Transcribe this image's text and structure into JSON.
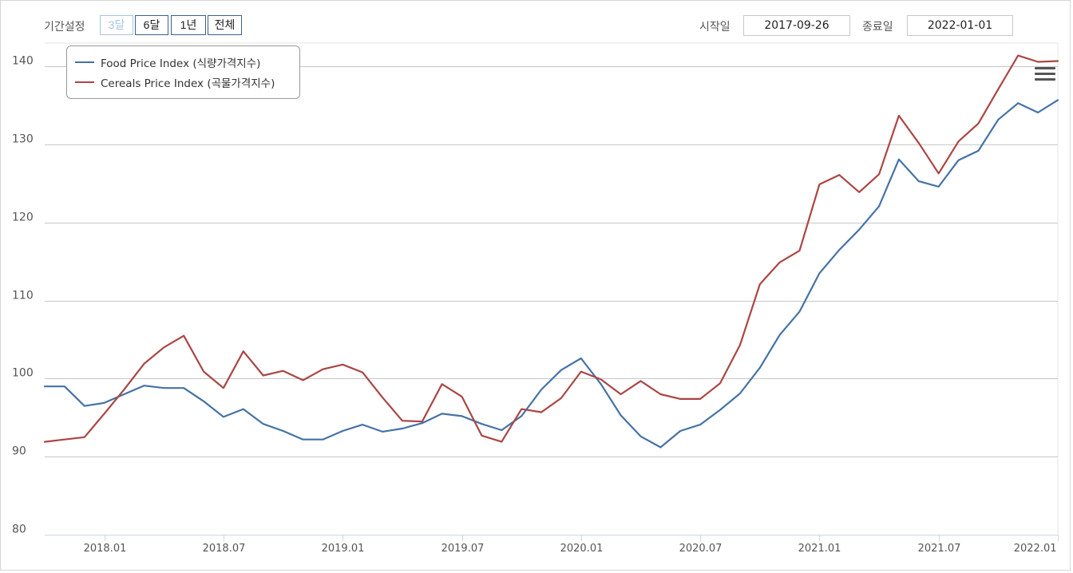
{
  "toolbar": {
    "range_label": "기간설정",
    "buttons": [
      {
        "label": "3달",
        "disabled": true
      },
      {
        "label": "6달",
        "disabled": false
      },
      {
        "label": "1년",
        "disabled": false
      },
      {
        "label": "전체",
        "disabled": false
      }
    ],
    "start_label": "시작일",
    "start_value": "2017-09-26",
    "end_label": "종료일",
    "end_value": "2022-01-01"
  },
  "chart_data": {
    "type": "line",
    "title": "",
    "xlabel": "",
    "ylabel": "",
    "ylim": [
      80,
      143
    ],
    "y_ticks": [
      80,
      90,
      100,
      110,
      120,
      130,
      140
    ],
    "x_range": [
      "2017-10",
      "2022-01"
    ],
    "x_ticks": [
      {
        "label": "2018.01",
        "month": "2018-01"
      },
      {
        "label": "2018.07",
        "month": "2018-07"
      },
      {
        "label": "2019.01",
        "month": "2019-01"
      },
      {
        "label": "2019.07",
        "month": "2019-07"
      },
      {
        "label": "2020.01",
        "month": "2020-01"
      },
      {
        "label": "2020.07",
        "month": "2020-07"
      },
      {
        "label": "2021.01",
        "month": "2021-01"
      },
      {
        "label": "2021.07",
        "month": "2021-07"
      },
      {
        "label": "2022.01",
        "month": "2022-01"
      }
    ],
    "grid": true,
    "legend_position": "top-left",
    "months": [
      "2017-10",
      "2017-11",
      "2017-12",
      "2018-01",
      "2018-02",
      "2018-03",
      "2018-04",
      "2018-05",
      "2018-06",
      "2018-07",
      "2018-08",
      "2018-09",
      "2018-10",
      "2018-11",
      "2018-12",
      "2019-01",
      "2019-02",
      "2019-03",
      "2019-04",
      "2019-05",
      "2019-06",
      "2019-07",
      "2019-08",
      "2019-09",
      "2019-10",
      "2019-11",
      "2019-12",
      "2020-01",
      "2020-02",
      "2020-03",
      "2020-04",
      "2020-05",
      "2020-06",
      "2020-07",
      "2020-08",
      "2020-09",
      "2020-10",
      "2020-11",
      "2020-12",
      "2021-01",
      "2021-02",
      "2021-03",
      "2021-04",
      "2021-05",
      "2021-06",
      "2021-07",
      "2021-08",
      "2021-09",
      "2021-10",
      "2021-11",
      "2021-12",
      "2022-01"
    ],
    "series": [
      {
        "name": "Food Price Index (식량가격지수)",
        "color": "#4572a7",
        "values": [
          99.0,
          99.0,
          96.5,
          96.9,
          98.0,
          99.1,
          98.8,
          98.8,
          97.1,
          95.1,
          96.1,
          94.2,
          93.3,
          92.2,
          92.2,
          93.3,
          94.1,
          93.2,
          93.6,
          94.3,
          95.5,
          95.2,
          94.2,
          93.4,
          95.2,
          98.6,
          101.1,
          102.6,
          99.3,
          95.3,
          92.6,
          91.2,
          93.3,
          94.1,
          96.0,
          98.1,
          101.4,
          105.6,
          108.6,
          113.5,
          116.5,
          119.1,
          122.1,
          128.1,
          125.3,
          124.6,
          128.0,
          129.2,
          133.2,
          135.3,
          134.1,
          135.7
        ]
      },
      {
        "name": "Cereals Price Index (곡물가격지수)",
        "color": "#aa4643",
        "values": [
          91.9,
          92.2,
          92.5,
          95.5,
          98.6,
          101.9,
          104.0,
          105.5,
          100.9,
          98.8,
          103.5,
          100.4,
          101.0,
          99.8,
          101.2,
          101.8,
          100.8,
          97.6,
          94.6,
          94.5,
          99.3,
          97.7,
          92.7,
          91.9,
          96.1,
          95.7,
          97.5,
          100.9,
          99.9,
          98.0,
          99.7,
          98.0,
          97.4,
          97.4,
          99.4,
          104.3,
          112.1,
          114.9,
          116.4,
          124.9,
          126.1,
          123.9,
          126.2,
          133.7,
          130.2,
          126.3,
          130.4,
          132.7,
          137.1,
          141.4,
          140.6,
          140.7
        ]
      }
    ]
  }
}
